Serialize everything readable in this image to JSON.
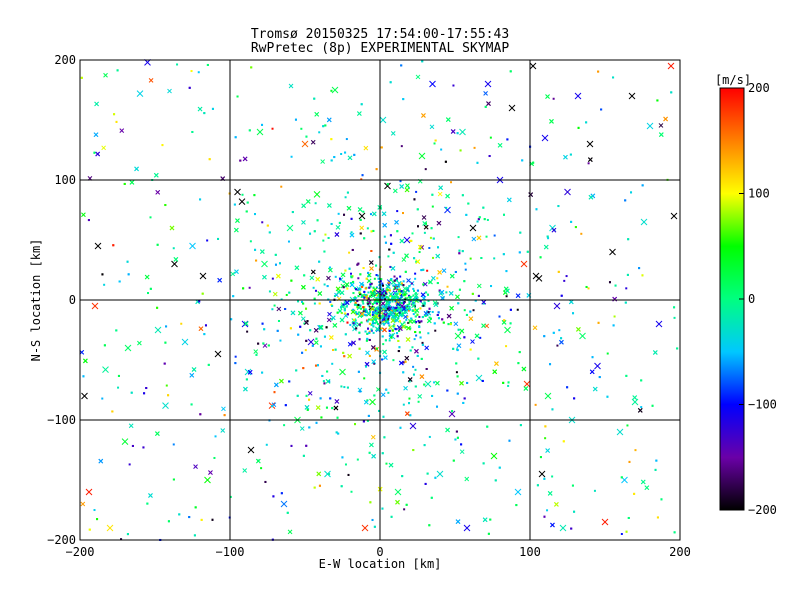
{
  "chart_data": {
    "type": "scatter",
    "title": "Tromsø 20150325 17:54:00-17:55:43",
    "subtitle": "RwPretec (8p) EXPERIMENTAL SKYMAP",
    "xlabel": "E-W location [km]",
    "ylabel": "N-S location [km]",
    "xlim": [
      -200,
      200
    ],
    "ylim": [
      -200,
      200
    ],
    "xticks": [
      -200,
      -100,
      0,
      100,
      200
    ],
    "yticks": [
      -200,
      -100,
      0,
      100,
      200
    ],
    "grid": true,
    "marker_types": [
      "dot",
      "x"
    ],
    "colorbar": {
      "label": "[m/s]",
      "range": [
        -200,
        200
      ],
      "ticks": [
        200,
        100,
        0,
        -100,
        -200
      ],
      "colors": [
        "#000000",
        "#6a00a8",
        "#0000ff",
        "#00c8ff",
        "#00ff80",
        "#00ff00",
        "#ffff00",
        "#ff8000",
        "#ff0000"
      ]
    },
    "points": [
      {
        "x": -190,
        "y": -5,
        "v": 180,
        "m": "x"
      },
      {
        "x": -188,
        "y": 45,
        "v": -200,
        "m": "x"
      },
      {
        "x": -183,
        "y": -58,
        "v": -10,
        "m": "x"
      },
      {
        "x": -170,
        "y": -118,
        "v": 30,
        "m": "x"
      },
      {
        "x": -168,
        "y": -40,
        "v": 10,
        "m": "x"
      },
      {
        "x": -160,
        "y": 172,
        "v": -40,
        "m": "x"
      },
      {
        "x": -155,
        "y": 198,
        "v": -110,
        "m": "x"
      },
      {
        "x": -148,
        "y": -25,
        "v": -20,
        "m": "x"
      },
      {
        "x": -143,
        "y": -88,
        "v": -30,
        "m": "x"
      },
      {
        "x": -137,
        "y": 30,
        "v": -200,
        "m": "x"
      },
      {
        "x": -130,
        "y": -35,
        "v": -40,
        "m": "x"
      },
      {
        "x": -125,
        "y": 45,
        "v": -50,
        "m": "x"
      },
      {
        "x": -118,
        "y": 20,
        "v": -200,
        "m": "x"
      },
      {
        "x": -115,
        "y": -150,
        "v": 50,
        "m": "x"
      },
      {
        "x": -108,
        "y": -45,
        "v": -200,
        "m": "x"
      },
      {
        "x": -95,
        "y": 90,
        "v": -200,
        "m": "x"
      },
      {
        "x": -92,
        "y": 82,
        "v": -200,
        "m": "x"
      },
      {
        "x": -90,
        "y": -20,
        "v": -110,
        "m": "x"
      },
      {
        "x": -88,
        "y": -60,
        "v": -30,
        "m": "x"
      },
      {
        "x": -86,
        "y": -125,
        "v": -200,
        "m": "x"
      },
      {
        "x": -80,
        "y": 140,
        "v": 20,
        "m": "x"
      },
      {
        "x": -77,
        "y": 30,
        "v": 10,
        "m": "x"
      },
      {
        "x": -72,
        "y": -88,
        "v": 180,
        "m": "x"
      },
      {
        "x": -64,
        "y": -170,
        "v": -70,
        "m": "x"
      },
      {
        "x": -60,
        "y": 60,
        "v": 0,
        "m": "x"
      },
      {
        "x": -55,
        "y": -100,
        "v": 20,
        "m": "x"
      },
      {
        "x": -50,
        "y": 130,
        "v": 160,
        "m": "x"
      },
      {
        "x": -46,
        "y": -35,
        "v": -120,
        "m": "x"
      },
      {
        "x": -42,
        "y": 88,
        "v": 40,
        "m": "x"
      },
      {
        "x": -35,
        "y": -145,
        "v": -30,
        "m": "x"
      },
      {
        "x": -30,
        "y": 175,
        "v": 20,
        "m": "x"
      },
      {
        "x": -25,
        "y": -60,
        "v": 30,
        "m": "x"
      },
      {
        "x": -18,
        "y": 0,
        "v": -20,
        "m": "x"
      },
      {
        "x": -12,
        "y": 70,
        "v": -200,
        "m": "x"
      },
      {
        "x": -10,
        "y": -190,
        "v": 180,
        "m": "x"
      },
      {
        "x": -5,
        "y": -85,
        "v": 40,
        "m": "x"
      },
      {
        "x": 2,
        "y": 150,
        "v": -30,
        "m": "x"
      },
      {
        "x": 5,
        "y": 95,
        "v": -200,
        "m": "x"
      },
      {
        "x": 8,
        "y": -30,
        "v": -40,
        "m": "x"
      },
      {
        "x": 12,
        "y": -160,
        "v": 10,
        "m": "x"
      },
      {
        "x": 18,
        "y": 50,
        "v": -110,
        "m": "x"
      },
      {
        "x": 22,
        "y": -105,
        "v": -120,
        "m": "x"
      },
      {
        "x": 28,
        "y": 120,
        "v": 30,
        "m": "x"
      },
      {
        "x": 32,
        "y": -70,
        "v": -20,
        "m": "x"
      },
      {
        "x": 35,
        "y": 180,
        "v": -100,
        "m": "x"
      },
      {
        "x": 40,
        "y": -145,
        "v": -30,
        "m": "x"
      },
      {
        "x": 45,
        "y": 75,
        "v": -90,
        "m": "x"
      },
      {
        "x": 48,
        "y": -95,
        "v": -140,
        "m": "x"
      },
      {
        "x": 52,
        "y": -30,
        "v": 20,
        "m": "x"
      },
      {
        "x": 55,
        "y": 140,
        "v": -20,
        "m": "x"
      },
      {
        "x": 58,
        "y": -190,
        "v": -110,
        "m": "x"
      },
      {
        "x": 62,
        "y": 60,
        "v": -200,
        "m": "x"
      },
      {
        "x": 66,
        "y": -65,
        "v": -30,
        "m": "x"
      },
      {
        "x": 72,
        "y": 180,
        "v": -110,
        "m": "x"
      },
      {
        "x": 76,
        "y": -130,
        "v": 50,
        "m": "x"
      },
      {
        "x": 80,
        "y": 100,
        "v": -110,
        "m": "x"
      },
      {
        "x": 85,
        "y": -25,
        "v": 20,
        "m": "x"
      },
      {
        "x": 88,
        "y": 160,
        "v": -200,
        "m": "x"
      },
      {
        "x": 92,
        "y": -160,
        "v": -50,
        "m": "x"
      },
      {
        "x": 96,
        "y": 30,
        "v": 180,
        "m": "x"
      },
      {
        "x": 98,
        "y": -70,
        "v": 180,
        "m": "x"
      },
      {
        "x": 102,
        "y": 195,
        "v": -200,
        "m": "x"
      },
      {
        "x": 104,
        "y": 20,
        "v": -200,
        "m": "x"
      },
      {
        "x": 106,
        "y": 18,
        "v": -200,
        "m": "x"
      },
      {
        "x": 108,
        "y": -145,
        "v": -200,
        "m": "x"
      },
      {
        "x": 110,
        "y": 135,
        "v": -110,
        "m": "x"
      },
      {
        "x": 112,
        "y": -80,
        "v": 20,
        "m": "x"
      },
      {
        "x": 115,
        "y": 60,
        "v": -30,
        "m": "x"
      },
      {
        "x": 118,
        "y": -5,
        "v": -120,
        "m": "x"
      },
      {
        "x": 122,
        "y": -190,
        "v": -20,
        "m": "x"
      },
      {
        "x": 125,
        "y": 90,
        "v": -120,
        "m": "x"
      },
      {
        "x": 128,
        "y": -100,
        "v": -30,
        "m": "x"
      },
      {
        "x": 132,
        "y": 170,
        "v": -110,
        "m": "x"
      },
      {
        "x": 135,
        "y": -30,
        "v": 10,
        "m": "x"
      },
      {
        "x": 140,
        "y": 130,
        "v": -200,
        "m": "x"
      },
      {
        "x": 145,
        "y": -55,
        "v": -110,
        "m": "x"
      },
      {
        "x": 150,
        "y": -185,
        "v": 190,
        "m": "x"
      },
      {
        "x": 155,
        "y": 40,
        "v": -200,
        "m": "x"
      },
      {
        "x": 160,
        "y": -110,
        "v": -30,
        "m": "x"
      },
      {
        "x": 163,
        "y": -150,
        "v": -50,
        "m": "x"
      },
      {
        "x": 168,
        "y": 170,
        "v": -200,
        "m": "x"
      },
      {
        "x": 170,
        "y": -85,
        "v": -10,
        "m": "x"
      },
      {
        "x": 176,
        "y": 65,
        "v": -30,
        "m": "x"
      },
      {
        "x": 180,
        "y": 145,
        "v": -40,
        "m": "x"
      },
      {
        "x": 186,
        "y": -20,
        "v": -110,
        "m": "x"
      },
      {
        "x": 194,
        "y": 195,
        "v": 190,
        "m": "x"
      },
      {
        "x": 196,
        "y": 70,
        "v": -200,
        "m": "x"
      },
      {
        "x": -197,
        "y": -80,
        "v": -200,
        "m": "x"
      },
      {
        "x": -194,
        "y": -160,
        "v": 190,
        "m": "x"
      },
      {
        "x": -180,
        "y": -190,
        "v": 110,
        "m": "x"
      }
    ]
  }
}
